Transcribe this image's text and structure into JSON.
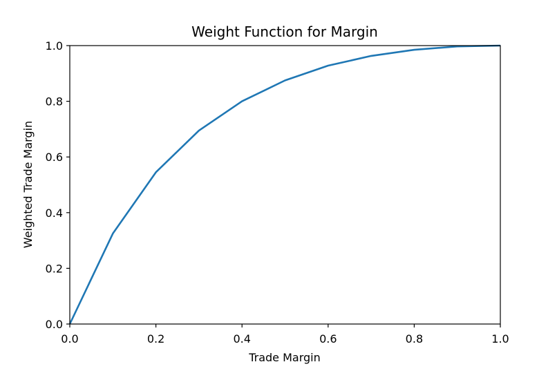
{
  "chart_data": {
    "type": "line",
    "title": "Weight Function for Margin",
    "xlabel": "Trade Margin",
    "ylabel": "Weighted Trade Margin",
    "xlim": [
      0.0,
      1.0
    ],
    "ylim": [
      0.0,
      1.0
    ],
    "xticks": [
      "0.0",
      "0.2",
      "0.4",
      "0.6",
      "0.8",
      "1.0"
    ],
    "yticks": [
      "0.0",
      "0.2",
      "0.4",
      "0.6",
      "0.8",
      "1.0"
    ],
    "grid": false,
    "legend": "none",
    "series": [
      {
        "color": "#1f77b4",
        "x": [
          0.0,
          0.1,
          0.2,
          0.3,
          0.4,
          0.5,
          0.6,
          0.7,
          0.8,
          0.9,
          1.0
        ],
        "y": [
          0.0,
          0.325,
          0.545,
          0.695,
          0.8,
          0.875,
          0.928,
          0.963,
          0.985,
          0.997,
          1.0
        ]
      }
    ]
  }
}
